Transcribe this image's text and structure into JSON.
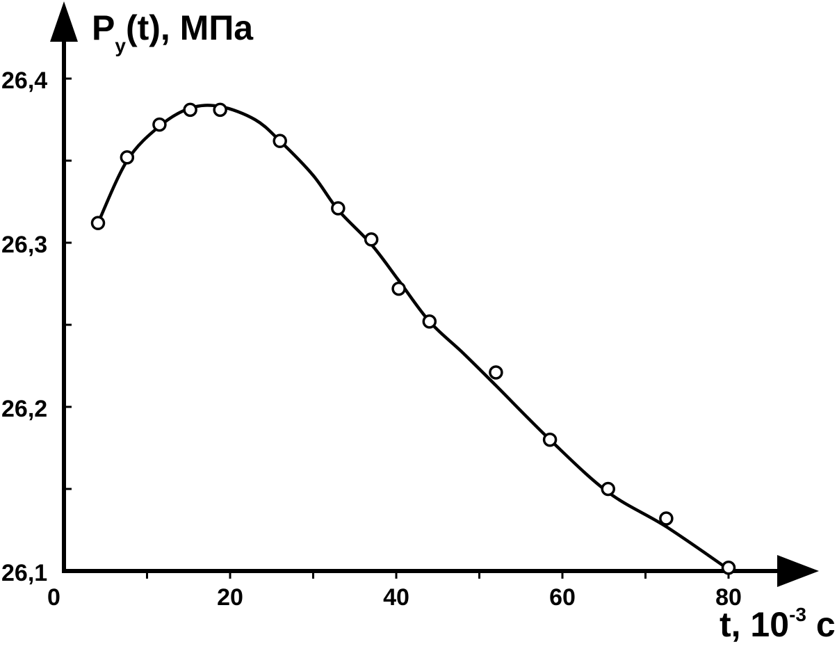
{
  "chart_data": {
    "type": "line",
    "ylabel": {
      "main": "P",
      "sub": "y",
      "rest": "(t), МПа"
    },
    "xlabel": {
      "main": "t, 10",
      "sup": "-3",
      "rest": " с"
    },
    "xlim": [
      0,
      90
    ],
    "ylim": [
      26.1,
      26.42
    ],
    "x_ticks": [
      0,
      20,
      40,
      60,
      80
    ],
    "x_tick_labels": [
      "0",
      "20",
      "40",
      "60",
      "80"
    ],
    "x_minor_ticks": [
      10,
      30,
      50,
      70
    ],
    "y_ticks": [
      26.1,
      26.2,
      26.3,
      26.4
    ],
    "y_tick_labels": [
      "26,1",
      "26,2",
      "26,3",
      "26,4"
    ],
    "y_minor_ticks": [
      26.15,
      26.25,
      26.35
    ],
    "grid": false,
    "series": [
      {
        "kind": "markers",
        "marker": "open-circle",
        "x": [
          4.1,
          7.6,
          11.5,
          15.2,
          18.8,
          26.0,
          33.0,
          37.0,
          40.3,
          44.0,
          52.0,
          58.5,
          65.5,
          72.5,
          80.0
        ],
        "y": [
          26.312,
          26.352,
          26.372,
          26.381,
          26.381,
          26.362,
          26.321,
          26.302,
          26.272,
          26.252,
          26.221,
          26.18,
          26.15,
          26.132,
          26.102
        ]
      },
      {
        "kind": "curve",
        "x": [
          4.1,
          7.6,
          11.5,
          15.2,
          18.8,
          23.0,
          26.0,
          30.0,
          33.0,
          37.0,
          40.3,
          44.0,
          48.0,
          52.0,
          58.5,
          65.5,
          72.5,
          80.0
        ],
        "y": [
          26.312,
          26.35,
          26.371,
          26.382,
          26.383,
          26.375,
          26.362,
          26.341,
          26.32,
          26.299,
          26.277,
          26.252,
          26.233,
          26.213,
          26.18,
          26.148,
          26.127,
          26.101
        ]
      }
    ]
  }
}
